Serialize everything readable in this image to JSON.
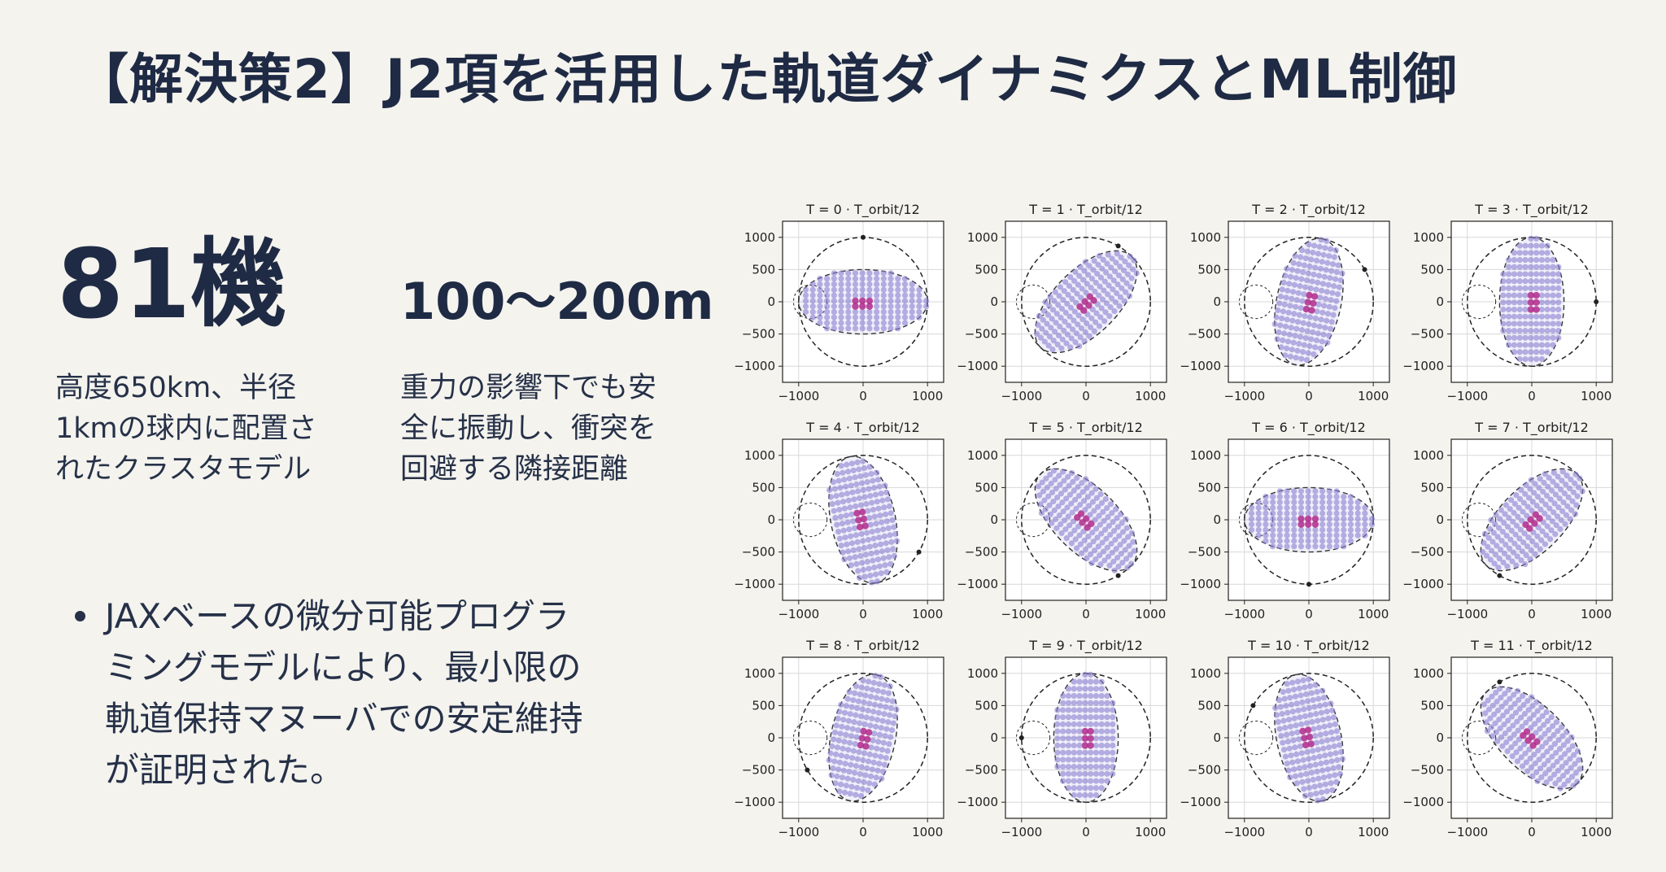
{
  "title": "【解決策2】J2項を活用した軌道ダイナミクスとML制御",
  "stats": {
    "count": {
      "value": "81機",
      "description": "高度650km、半径\n1kmの球内に配置さ\nれたクラスタモデル"
    },
    "distance": {
      "value": "100〜200m",
      "description": "重力の影響下でも安\n全に振動し、衝突を\n回避する隣接距離"
    }
  },
  "bullet": "JAXベースの微分可能プログラ\nミングモデルにより、最小限の\n軌道保持マヌーバでの安定維持\nが証明された。",
  "colors": {
    "text": "#1f2a44",
    "background": "#f4f3ee",
    "dots": "#8a7fd0",
    "dots_center": "#b0288a"
  },
  "chart_data": {
    "type": "scatter",
    "panels": [
      {
        "title": "T = 0 · T_orbit/12",
        "phase": 0
      },
      {
        "title": "T = 1 · T_orbit/12",
        "phase": 1
      },
      {
        "title": "T = 2 · T_orbit/12",
        "phase": 2
      },
      {
        "title": "T = 3 · T_orbit/12",
        "phase": 3
      },
      {
        "title": "T = 4 · T_orbit/12",
        "phase": 4
      },
      {
        "title": "T = 5 · T_orbit/12",
        "phase": 5
      },
      {
        "title": "T = 6 · T_orbit/12",
        "phase": 6
      },
      {
        "title": "T = 7 · T_orbit/12",
        "phase": 7
      },
      {
        "title": "T = 8 · T_orbit/12",
        "phase": 8
      },
      {
        "title": "T = 9 · T_orbit/12",
        "phase": 9
      },
      {
        "title": "T = 10 · T_orbit/12",
        "phase": 10
      },
      {
        "title": "T = 11 · T_orbit/12",
        "phase": 11
      }
    ],
    "xlim": [
      -1250,
      1250
    ],
    "ylim": [
      -1250,
      1250
    ],
    "xticks": [
      -1000,
      0,
      1000
    ],
    "yticks": [
      1000,
      500,
      0,
      -500,
      -1000
    ],
    "outer_circle_radius": 1000,
    "cluster_semi_major": 1000,
    "cluster_semi_minor": 500,
    "grid": true
  }
}
